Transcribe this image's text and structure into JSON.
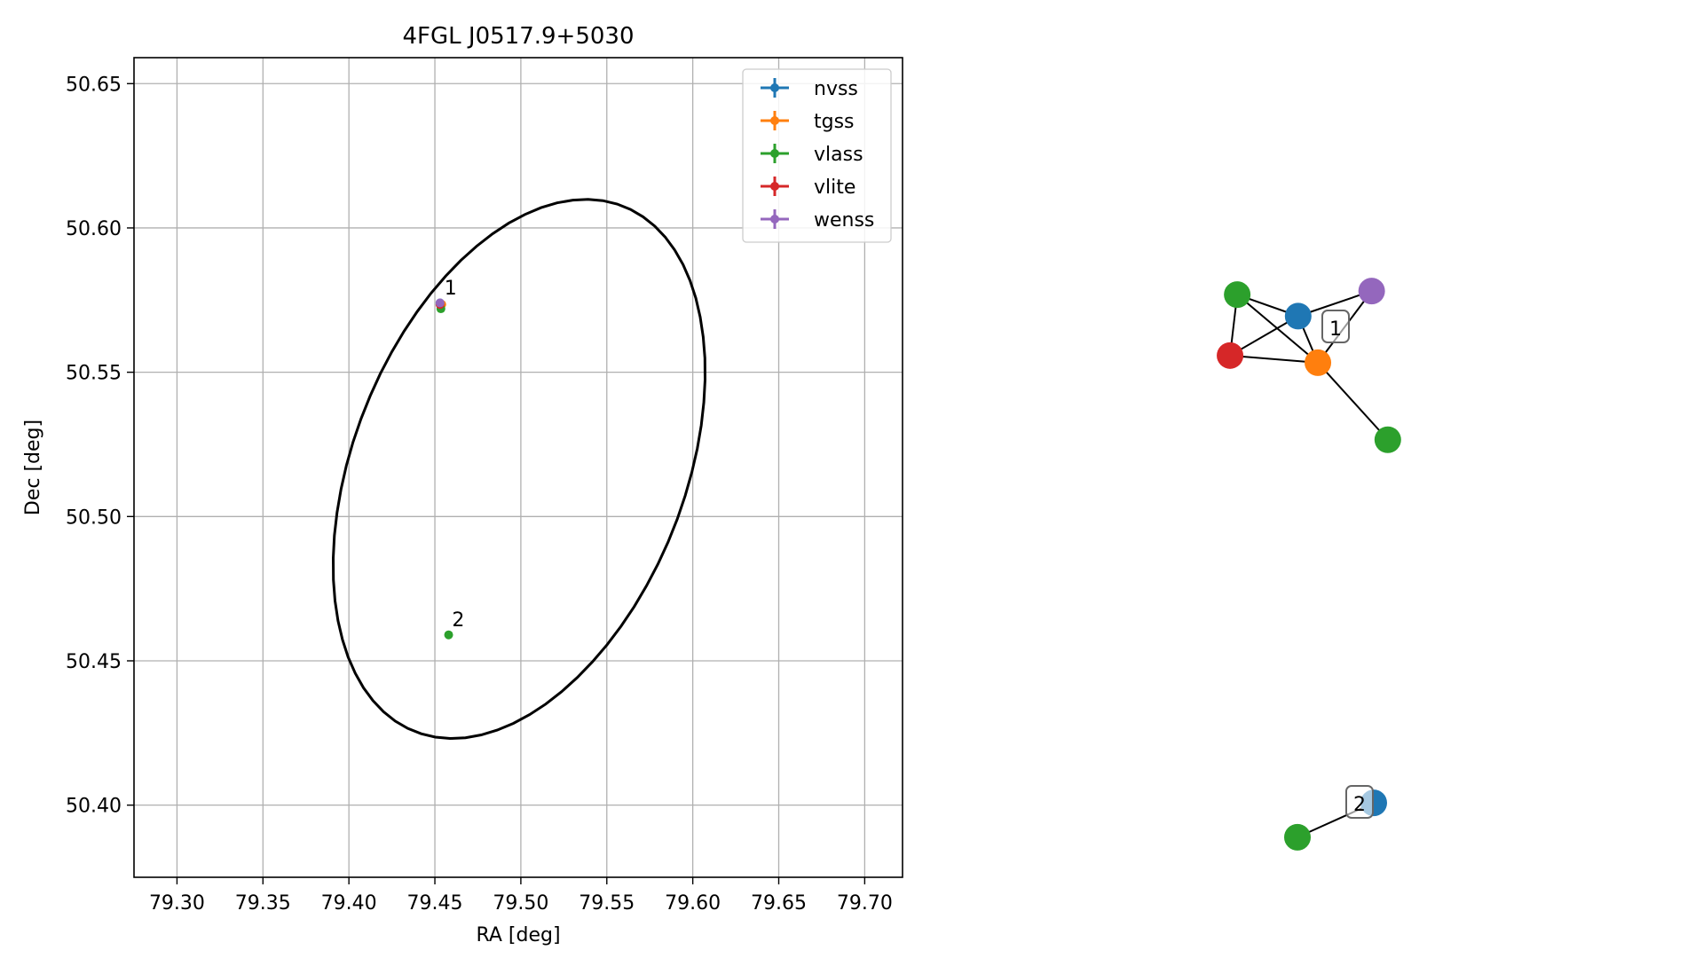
{
  "chart_data": [
    {
      "type": "scatter",
      "title": "4FGL J0517.9+5030",
      "xlabel": "RA [deg]",
      "ylabel": "Dec [deg]",
      "xlim": [
        79.275,
        79.722
      ],
      "ylim": [
        50.375,
        50.659
      ],
      "xticks": [
        79.3,
        79.35,
        79.4,
        79.45,
        79.5,
        79.55,
        79.6,
        79.65,
        79.7
      ],
      "xtick_labels": [
        "79.30",
        "79.35",
        "79.40",
        "79.45",
        "79.50",
        "79.55",
        "79.60",
        "79.65",
        "79.70"
      ],
      "yticks": [
        50.4,
        50.45,
        50.5,
        50.55,
        50.6,
        50.65
      ],
      "ytick_labels": [
        "50.40",
        "50.45",
        "50.50",
        "50.55",
        "50.60",
        "50.65"
      ],
      "grid": true,
      "legend_position": "top-right",
      "series": [
        {
          "name": "nvss",
          "color": "#1f77b4",
          "points": [
            {
              "x": 79.453,
              "y": 50.574
            }
          ]
        },
        {
          "name": "tgss",
          "color": "#ff7f0e",
          "points": [
            {
              "x": 79.454,
              "y": 50.5735
            }
          ]
        },
        {
          "name": "vlass",
          "color": "#2ca02c",
          "points": [
            {
              "x": 79.4535,
              "y": 50.572
            },
            {
              "x": 79.458,
              "y": 50.459
            }
          ]
        },
        {
          "name": "vlite",
          "color": "#d62728",
          "points": [
            {
              "x": 79.453,
              "y": 50.5735
            }
          ]
        },
        {
          "name": "wenss",
          "color": "#9467bd",
          "points": [
            {
              "x": 79.453,
              "y": 50.574
            }
          ]
        }
      ],
      "annotations": [
        {
          "text": "1",
          "x": 79.4555,
          "y": 50.577
        },
        {
          "text": "2",
          "x": 79.46,
          "y": 50.462
        }
      ],
      "error_ellipse": {
        "center_ra": 79.499,
        "center_dec": 50.5165,
        "ra_radius": 0.128,
        "dec_radius": 0.0838,
        "tilt_deg": 45
      }
    },
    {
      "type": "network",
      "groups": [
        {
          "label": "1",
          "nodes": [
            {
              "id": "a",
              "catalog": "vlass",
              "color": "#2ca02c",
              "gx": 0.07,
              "gy": 0.07
            },
            {
              "id": "b",
              "catalog": "nvss",
              "color": "#1f77b4",
              "gx": 0.41,
              "gy": 0.19
            },
            {
              "id": "c",
              "catalog": "wenss",
              "color": "#9467bd",
              "gx": 0.82,
              "gy": 0.05
            },
            {
              "id": "d",
              "catalog": "vlite",
              "color": "#d62728",
              "gx": 0.03,
              "gy": 0.41
            },
            {
              "id": "e",
              "catalog": "tgss",
              "color": "#ff7f0e",
              "gx": 0.52,
              "gy": 0.45
            },
            {
              "id": "f",
              "catalog": "vlass",
              "color": "#2ca02c",
              "gx": 0.91,
              "gy": 0.88
            }
          ],
          "edges": [
            [
              "a",
              "b"
            ],
            [
              "a",
              "d"
            ],
            [
              "a",
              "e"
            ],
            [
              "b",
              "c"
            ],
            [
              "b",
              "d"
            ],
            [
              "b",
              "e"
            ],
            [
              "c",
              "e"
            ],
            [
              "d",
              "e"
            ],
            [
              "e",
              "f"
            ]
          ]
        },
        {
          "label": "2",
          "nodes": [
            {
              "id": "g",
              "catalog": "nvss",
              "color": "#1f77b4",
              "gx": 0.93,
              "gy": 0.07
            },
            {
              "id": "h",
              "catalog": "vlass",
              "color": "#2ca02c",
              "gx": 0.07,
              "gy": 0.93
            }
          ],
          "edges": [
            [
              "g",
              "h"
            ]
          ]
        }
      ]
    }
  ]
}
